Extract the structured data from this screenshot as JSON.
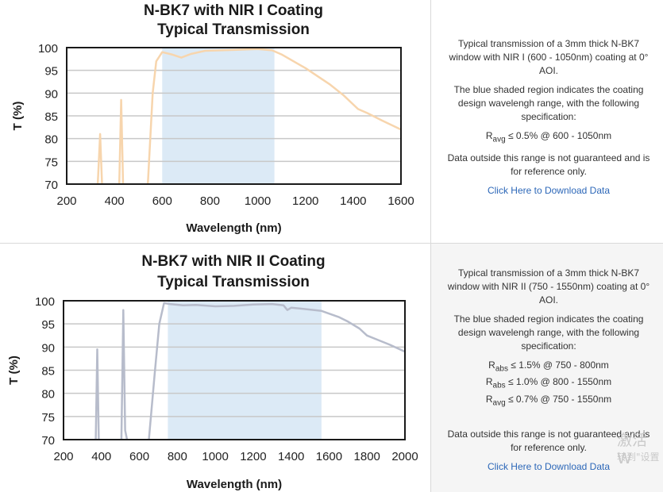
{
  "panels": [
    {
      "description": {
        "intro": "Typical transmission of a 3mm thick N-BK7 window with NIR I (600 - 1050nm) coating at 0° AOI.",
        "region_note": "The blue shaded region indicates the coating design wavelengh range, with the following specification:",
        "specs": [
          {
            "symbol": "R",
            "sub": "avg",
            "text": " ≤ 0.5% @ 600 - 1050nm"
          }
        ],
        "disclaimer": "Data outside this range is not guaranteed and is for reference only.",
        "link": "Click Here to Download Data"
      }
    },
    {
      "description": {
        "intro": "Typical transmission of a 3mm thick N-BK7 window with NIR II (750 - 1550nm) coating at 0° AOI.",
        "region_note": "The blue shaded region indicates the coating design wavelengh range, with the following specification:",
        "specs": [
          {
            "symbol": "R",
            "sub": "abs",
            "text": " ≤ 1.5% @ 750 - 800nm"
          },
          {
            "symbol": "R",
            "sub": "abs",
            "text": " ≤ 1.0% @ 800 - 1550nm"
          },
          {
            "symbol": "R",
            "sub": "avg",
            "text": " ≤ 0.7% @ 750 - 1550nm"
          }
        ],
        "disclaimer": "Data outside this range is not guaranteed and is for reference only.",
        "link": "Click Here to Download Data"
      }
    }
  ],
  "chart_data": [
    {
      "type": "line",
      "title": "N-BK7 with NIR I Coating",
      "subtitle": "Typical Transmission",
      "xlabel": "Wavelength (nm)",
      "ylabel": "T (%)",
      "xlim": [
        200,
        1600
      ],
      "ylim": [
        70,
        100
      ],
      "xticks": [
        200,
        400,
        600,
        800,
        1000,
        1200,
        1400,
        1600
      ],
      "yticks": [
        70,
        75,
        80,
        85,
        90,
        95,
        100
      ],
      "grid": true,
      "shaded_region": [
        600,
        1070
      ],
      "shade_color": "#dceaf6",
      "series": [
        {
          "color": "#f7d5ad",
          "segments": [
            [
              [
                330,
                70
              ],
              [
                340,
                81
              ],
              [
                348,
                70
              ]
            ],
            [
              [
                420,
                70
              ],
              [
                428,
                88.5
              ],
              [
                436,
                70
              ]
            ],
            [
              [
                540,
                70
              ],
              [
                560,
                90
              ],
              [
                575,
                97
              ],
              [
                600,
                99
              ],
              [
                640,
                98.5
              ],
              [
                680,
                97.8
              ],
              [
                720,
                98.6
              ],
              [
                780,
                99.3
              ],
              [
                900,
                99.5
              ],
              [
                1000,
                99.7
              ],
              [
                1060,
                99.4
              ],
              [
                1100,
                98.5
              ],
              [
                1200,
                95.5
              ],
              [
                1300,
                92
              ],
              [
                1360,
                89.5
              ],
              [
                1420,
                86.5
              ],
              [
                1460,
                85.6
              ],
              [
                1520,
                84
              ],
              [
                1600,
                82
              ]
            ]
          ]
        }
      ]
    },
    {
      "type": "line",
      "title": "N-BK7 with NIR II Coating",
      "subtitle": "Typical Transmission",
      "xlabel": "Wavelength (nm)",
      "ylabel": "T (%)",
      "xlim": [
        200,
        2000
      ],
      "ylim": [
        70,
        100
      ],
      "xticks": [
        200,
        400,
        600,
        800,
        1000,
        1200,
        1400,
        1600,
        1800,
        2000
      ],
      "yticks": [
        70,
        75,
        80,
        85,
        90,
        95,
        100
      ],
      "grid": true,
      "shaded_region": [
        750,
        1560
      ],
      "shade_color": "#dceaf6",
      "series": [
        {
          "color": "#b7bccb",
          "segments": [
            [
              [
                370,
                70
              ],
              [
                378,
                89.5
              ],
              [
                386,
                70
              ]
            ],
            [
              [
                505,
                70
              ],
              [
                515,
                98
              ],
              [
                525,
                72
              ],
              [
                535,
                70
              ]
            ],
            [
              [
                650,
                70
              ],
              [
                680,
                84
              ],
              [
                705,
                95
              ],
              [
                730,
                99.5
              ],
              [
                760,
                99.3
              ],
              [
                830,
                99
              ],
              [
                900,
                99.1
              ],
              [
                1000,
                98.8
              ],
              [
                1100,
                98.9
              ],
              [
                1200,
                99.2
              ],
              [
                1300,
                99.3
              ],
              [
                1360,
                99
              ],
              [
                1380,
                98
              ],
              [
                1400,
                98.5
              ],
              [
                1450,
                98.3
              ],
              [
                1560,
                97.8
              ],
              [
                1650,
                96.5
              ],
              [
                1700,
                95.5
              ],
              [
                1760,
                94
              ],
              [
                1800,
                92.5
              ],
              [
                1860,
                91.5
              ],
              [
                1920,
                90.5
              ],
              [
                2000,
                89
              ]
            ]
          ]
        }
      ]
    }
  ]
}
